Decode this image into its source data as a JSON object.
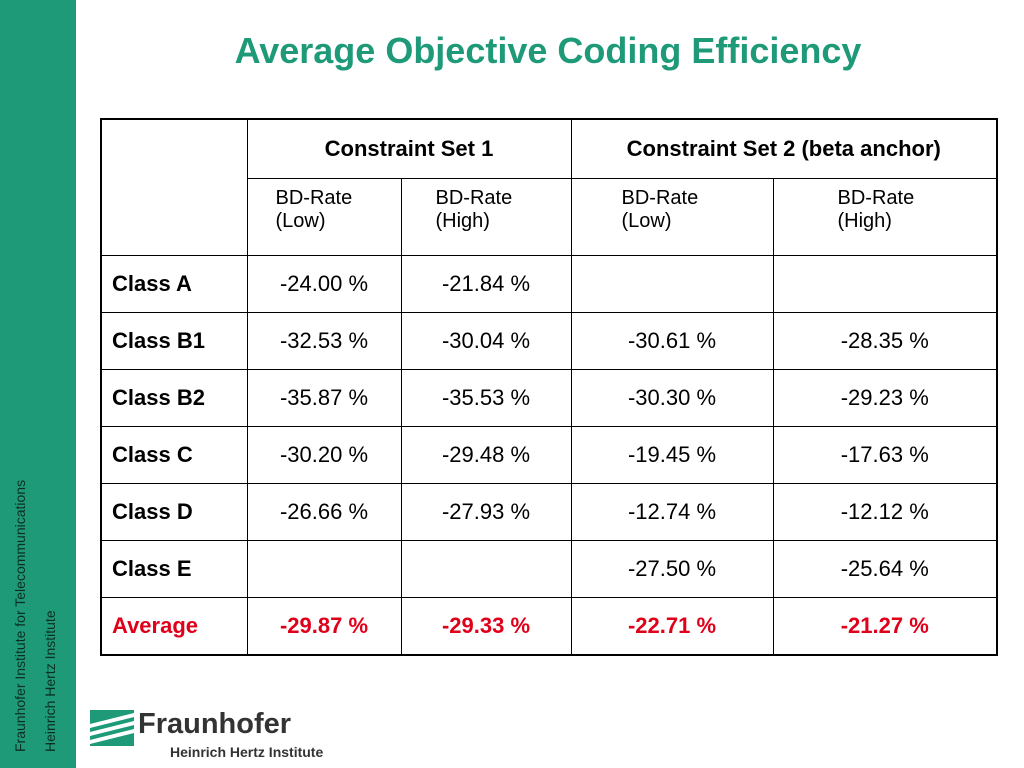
{
  "sidebar": {
    "line1": "Fraunhofer Institute for Telecommunications",
    "line2": "Heinrich Hertz Institute"
  },
  "title": "Average Objective Coding Efficiency",
  "table": {
    "group_headers": [
      "Constraint Set 1",
      "Constraint Set 2 (beta anchor)"
    ],
    "sub_headers": [
      {
        "line1": "BD-Rate",
        "line2": "(Low)"
      },
      {
        "line1": "BD-Rate",
        "line2": "(High)"
      },
      {
        "line1": "BD-Rate",
        "line2": "(Low)"
      },
      {
        "line1": "BD-Rate",
        "line2": "(High)"
      }
    ],
    "rows": [
      {
        "label": "Class A",
        "values": [
          "-24.00 %",
          "-21.84 %",
          "",
          ""
        ]
      },
      {
        "label": "Class B1",
        "values": [
          "-32.53 %",
          "-30.04 %",
          "-30.61 %",
          "-28.35 %"
        ]
      },
      {
        "label": "Class B2",
        "values": [
          "-35.87 %",
          "-35.53 %",
          "-30.30 %",
          "-29.23 %"
        ]
      },
      {
        "label": "Class C",
        "values": [
          "-30.20 %",
          "-29.48 %",
          "-19.45 %",
          "-17.63 %"
        ]
      },
      {
        "label": "Class D",
        "values": [
          "-26.66 %",
          "-27.93 %",
          "-12.74 %",
          "-12.12 %"
        ]
      },
      {
        "label": "Class E",
        "values": [
          "",
          "",
          "-27.50 %",
          "-25.64 %"
        ]
      },
      {
        "label": "Average",
        "values": [
          "-29.87 %",
          "-29.33 %",
          "-22.71 %",
          "-21.27 %"
        ]
      }
    ]
  },
  "logo": {
    "brand": "Fraunhofer",
    "institute": "Heinrich Hertz Institute"
  },
  "colors": {
    "accent": "#1e9a78",
    "average": "#e0001a"
  }
}
